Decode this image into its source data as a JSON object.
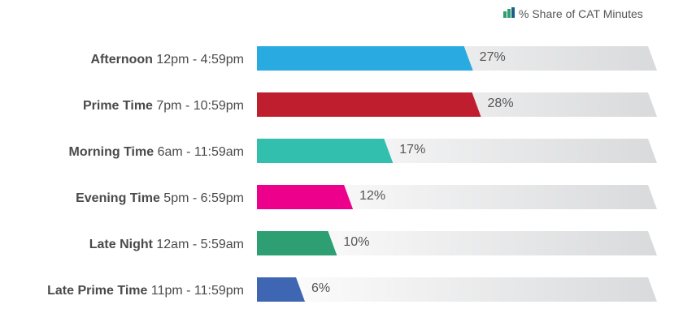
{
  "chart_data": {
    "type": "bar",
    "orientation": "horizontal",
    "legend": {
      "label": "% Share of CAT Minutes",
      "placement": "top-right",
      "icon_colors": [
        "#2e9e73",
        "#1a5f8a"
      ]
    },
    "categories": [
      {
        "name": "Afternoon",
        "range": "12pm - 4:59pm",
        "value_label": "27%"
      },
      {
        "name": "Prime Time",
        "range": "7pm - 10:59pm",
        "value_label": "28%"
      },
      {
        "name": "Morning Time",
        "range": "6am - 11:59am",
        "value_label": "17%"
      },
      {
        "name": "Evening Time",
        "range": "5pm - 6:59pm",
        "value_label": "12%"
      },
      {
        "name": "Late Night",
        "range": "12am - 5:59am",
        "value_label": "10%"
      },
      {
        "name": "Late Prime Time",
        "range": "11pm - 11:59pm",
        "value_label": "6%"
      }
    ],
    "values": [
      27,
      28,
      17,
      12,
      10,
      6
    ],
    "colors": [
      "#29abe2",
      "#be1e2d",
      "#33bfae",
      "#ec008c",
      "#2e9e73",
      "#3f66b3"
    ],
    "track_color": "#e6e7e8",
    "xlim": [
      0,
      50
    ],
    "grid": false
  }
}
